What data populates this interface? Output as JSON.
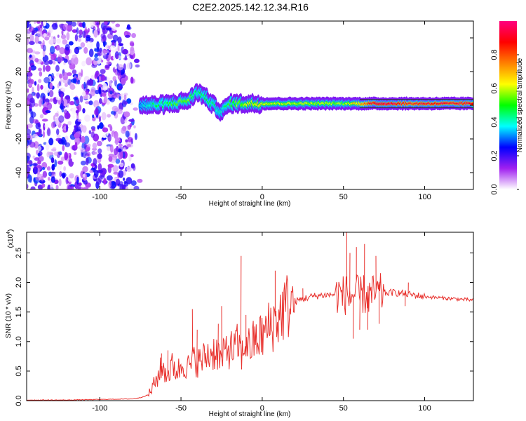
{
  "title": "C2E2.2025.142.12.34.R16",
  "chart_data": [
    {
      "type": "heatmap",
      "xlabel": "Height of straight line (km)",
      "ylabel": "Frequency (Hz)",
      "xlim": [
        -145,
        130
      ],
      "ylim": [
        -50,
        50
      ],
      "x_ticks": [
        -100,
        -50,
        0,
        50,
        100
      ],
      "y_ticks": [
        -40,
        -20,
        0,
        20,
        40
      ],
      "colorbar": {
        "label": "Normalized spectral amplitude",
        "range": [
          0,
          1
        ],
        "ticks": [
          "0.0",
          "0.2",
          "0.4",
          "0.6",
          "0.8"
        ],
        "colors": [
          "#ffffff",
          "#a020f0",
          "#0000ff",
          "#00ffff",
          "#00ff00",
          "#ffff00",
          "#ff8000",
          "#ff0000",
          "#ff0080"
        ]
      },
      "noise_region_x": [
        -145,
        -75
      ],
      "ridge": [
        {
          "x": -75,
          "y": 0,
          "amp": 0.35
        },
        {
          "x": -65,
          "y": 0,
          "amp": 0.45
        },
        {
          "x": -55,
          "y": 1,
          "amp": 0.5
        },
        {
          "x": -45,
          "y": 3,
          "amp": 0.55
        },
        {
          "x": -40,
          "y": 8,
          "amp": 0.45
        },
        {
          "x": -35,
          "y": 5,
          "amp": 0.45
        },
        {
          "x": -30,
          "y": 0,
          "amp": 0.45
        },
        {
          "x": -25,
          "y": -4,
          "amp": 0.4
        },
        {
          "x": -20,
          "y": 1,
          "amp": 0.5
        },
        {
          "x": -10,
          "y": 1,
          "amp": 0.6
        },
        {
          "x": 0,
          "y": 1,
          "amp": 0.65
        },
        {
          "x": 10,
          "y": 1,
          "amp": 0.6
        },
        {
          "x": 20,
          "y": 1,
          "amp": 0.6
        },
        {
          "x": 30,
          "y": 1,
          "amp": 0.6
        },
        {
          "x": 40,
          "y": 1,
          "amp": 0.6
        },
        {
          "x": 50,
          "y": 1,
          "amp": 0.55
        },
        {
          "x": 60,
          "y": 1,
          "amp": 0.7
        },
        {
          "x": 70,
          "y": 1,
          "amp": 0.95
        },
        {
          "x": 80,
          "y": 1,
          "amp": 0.95
        },
        {
          "x": 90,
          "y": 1,
          "amp": 0.85
        },
        {
          "x": 100,
          "y": 1,
          "amp": 0.9
        },
        {
          "x": 110,
          "y": 1,
          "amp": 0.9
        },
        {
          "x": 120,
          "y": 1,
          "amp": 0.9
        },
        {
          "x": 130,
          "y": 1,
          "amp": 0.9
        }
      ]
    },
    {
      "type": "line",
      "xlabel": "Height of straight line (km)",
      "ylabel": "SNR (10 * v/v)",
      "y_multiplier": "(x10",
      "y_multiplier_exp": "4",
      "xlim": [
        -145,
        130
      ],
      "ylim": [
        0,
        2.85
      ],
      "x_ticks": [
        -100,
        -50,
        0,
        50,
        100
      ],
      "y_ticks": [
        "0.0",
        "0.5",
        "1.0",
        "1.5",
        "2.0",
        "2.5"
      ],
      "series": [
        {
          "color": "#e8312d",
          "x": [
            -145,
            -120,
            -100,
            -80,
            -75,
            -70,
            -66,
            -62,
            -58,
            -55,
            -52,
            -48,
            -45,
            -42,
            -38,
            -35,
            -32,
            -28,
            -25,
            -22,
            -18,
            -15,
            -12,
            -10,
            -8,
            -5,
            -2,
            0,
            3,
            6,
            8,
            10,
            13,
            16,
            20,
            25,
            30,
            35,
            40,
            45,
            48,
            50,
            52,
            54,
            56,
            58,
            60,
            62,
            64,
            66,
            68,
            70,
            75,
            80,
            85,
            90,
            95,
            100,
            105,
            110,
            115,
            120,
            125,
            130
          ],
          "y": [
            0.01,
            0.01,
            0.02,
            0.03,
            0.05,
            0.1,
            0.3,
            0.55,
            0.45,
            0.6,
            0.5,
            0.65,
            0.55,
            0.7,
            0.65,
            0.75,
            0.8,
            0.85,
            0.65,
            0.9,
            0.85,
            0.95,
            0.75,
            1.05,
            0.9,
            1.0,
            1.05,
            1.1,
            1.2,
            1.3,
            1.35,
            1.4,
            1.55,
            1.62,
            1.68,
            1.72,
            1.76,
            1.78,
            1.79,
            1.8,
            1.82,
            1.78,
            1.8,
            1.75,
            1.8,
            1.78,
            1.76,
            1.8,
            1.78,
            1.77,
            1.79,
            1.8,
            1.82,
            1.83,
            1.82,
            1.8,
            1.78,
            1.76,
            1.75,
            1.74,
            1.73,
            1.72,
            1.71,
            1.7
          ]
        }
      ],
      "spikes": [
        {
          "x": -62,
          "y": 0.8
        },
        {
          "x": -58,
          "y": 0.85
        },
        {
          "x": -43,
          "y": 1.55
        },
        {
          "x": -40,
          "y": 1.2
        },
        {
          "x": -27,
          "y": 1.3
        },
        {
          "x": -25,
          "y": 1.6
        },
        {
          "x": -13,
          "y": 2.45
        },
        {
          "x": -10,
          "y": 1.45
        },
        {
          "x": 8,
          "y": 2.2
        },
        {
          "x": 14,
          "y": 1.7
        },
        {
          "x": 25,
          "y": 1.9
        },
        {
          "x": 52,
          "y": 2.88
        },
        {
          "x": 54,
          "y": 2.5
        },
        {
          "x": 56,
          "y": 1.05
        },
        {
          "x": 58,
          "y": 2.6
        },
        {
          "x": 60,
          "y": 1.2
        },
        {
          "x": 63,
          "y": 2.65
        },
        {
          "x": 65,
          "y": 1.2
        },
        {
          "x": 70,
          "y": 2.45
        },
        {
          "x": 72,
          "y": 1.3
        },
        {
          "x": 88,
          "y": 1.6
        },
        {
          "x": 90,
          "y": 2.0
        }
      ]
    }
  ]
}
